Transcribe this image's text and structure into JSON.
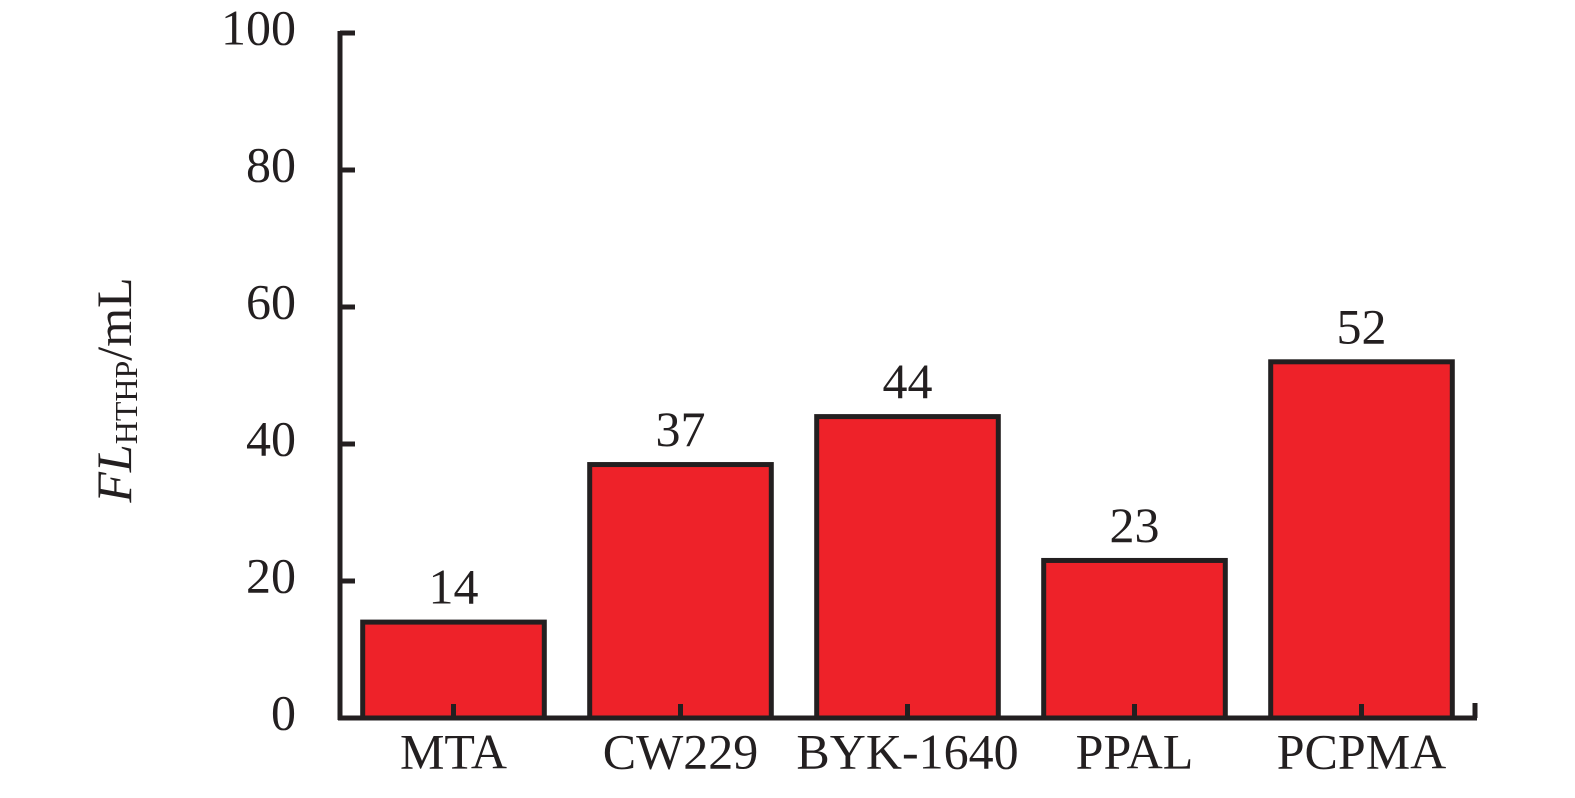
{
  "chart_data": {
    "type": "bar",
    "ylabel": {
      "main": "FL",
      "sub": "HTHP",
      "unit": "/mL"
    },
    "categories": [
      "MTA",
      "CW229",
      "BYK-1640",
      "PPAL",
      "PCPMA"
    ],
    "values": [
      14,
      37,
      44,
      23,
      52
    ],
    "color": "#ee2229",
    "ylim": [
      0,
      100
    ],
    "yticks": [
      0,
      20,
      40,
      60,
      80,
      100
    ],
    "grid": false
  }
}
